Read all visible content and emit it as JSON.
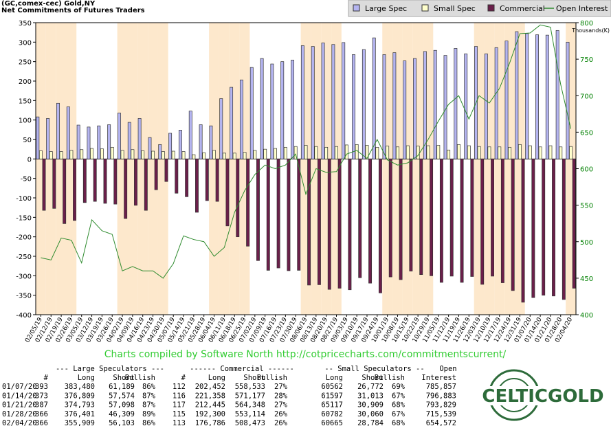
{
  "chart_data": {
    "type": "bar",
    "title": "(GC,comex-cec) Gold,NY",
    "subtitle": "Net Commitments of Futures Traders",
    "y2_label": "Thousands(K)",
    "credit": "Charts compiled by Software North  http://cotpricecharts.com/commitmentscurrent/",
    "categories": [
      "02/05/19",
      "02/12/19",
      "02/19/19",
      "02/26/19",
      "03/05/19",
      "03/12/19",
      "03/19/19",
      "03/26/19",
      "04/02/19",
      "04/09/19",
      "04/16/19",
      "04/23/19",
      "04/30/19",
      "05/07/19",
      "05/14/19",
      "05/21/19",
      "05/28/19",
      "06/04/19",
      "06/11/19",
      "06/18/19",
      "06/25/19",
      "07/02/19",
      "07/09/19",
      "07/16/19",
      "07/23/19",
      "07/30/19",
      "08/06/19",
      "08/13/19",
      "08/20/19",
      "08/27/19",
      "09/03/19",
      "09/10/19",
      "09/17/19",
      "09/24/19",
      "10/01/19",
      "10/08/19",
      "10/15/19",
      "10/22/19",
      "10/29/19",
      "11/05/19",
      "11/12/19",
      "11/19/19",
      "11/26/19",
      "12/03/19",
      "12/10/19",
      "12/17/19",
      "12/24/19",
      "12/31/19",
      "01/07/20",
      "01/14/20",
      "01/21/20",
      "01/28/20",
      "02/04/20"
    ],
    "series": [
      {
        "name": "Large Spec",
        "color": "#b4b4f0",
        "values": [
          108,
          104,
          143,
          134,
          87,
          82,
          85,
          88,
          118,
          94,
          104,
          55,
          37,
          66,
          74,
          123,
          88,
          85,
          155,
          184,
          203,
          235,
          258,
          244,
          250,
          254,
          291,
          289,
          298,
          294,
          299,
          268,
          281,
          311,
          268,
          273,
          252,
          258,
          276,
          279,
          266,
          284,
          270,
          289,
          270,
          286,
          303,
          327,
          322,
          319,
          318,
          330,
          300
        ]
      },
      {
        "name": "Small Spec",
        "color": "#ffffcc",
        "values": [
          21,
          19,
          19,
          22,
          24,
          27,
          26,
          30,
          22,
          24,
          21,
          20,
          19,
          20,
          19,
          11,
          16,
          22,
          15,
          15,
          17,
          22,
          25,
          27,
          30,
          32,
          35,
          32,
          30,
          32,
          36,
          37,
          35,
          30,
          33,
          31,
          34,
          33,
          34,
          35,
          23,
          37,
          34,
          32,
          31,
          31,
          30,
          37,
          34,
          31,
          34,
          31,
          32
        ]
      },
      {
        "name": "Commercial",
        "color": "#6b1f4a",
        "values": [
          -132,
          -127,
          -166,
          -158,
          -112,
          -109,
          -114,
          -116,
          -153,
          -119,
          -132,
          -79,
          -58,
          -88,
          -97,
          -137,
          -107,
          -109,
          -172,
          -200,
          -224,
          -261,
          -286,
          -280,
          -287,
          -286,
          -324,
          -323,
          -335,
          -332,
          -336,
          -305,
          -319,
          -344,
          -303,
          -310,
          -288,
          -297,
          -300,
          -317,
          -301,
          -317,
          -302,
          -322,
          -301,
          -318,
          -338,
          -368,
          -356,
          -350,
          -352,
          -361,
          -332
        ]
      },
      {
        "name": "Open Interest",
        "color": "#2e8b2e",
        "axis": "y2",
        "type": "line",
        "values": [
          478,
          475,
          505,
          502,
          471,
          530,
          515,
          510,
          460,
          466,
          460,
          460,
          450,
          470,
          508,
          503,
          500,
          480,
          492,
          540,
          570,
          592,
          605,
          600,
          605,
          620,
          565,
          600,
          595,
          596,
          620,
          625,
          614,
          640,
          612,
          605,
          608,
          618,
          640,
          665,
          688,
          700,
          668,
          700,
          690,
          710,
          745,
          785,
          785.857,
          796.883,
          793.829,
          715.539,
          654.572
        ]
      }
    ],
    "ylim": [
      -400,
      350
    ],
    "yticks": [
      350,
      300,
      250,
      200,
      150,
      100,
      50,
      0,
      -50,
      -100,
      -150,
      -200,
      -250,
      -300,
      -350,
      -400
    ],
    "y2lim": [
      400,
      800
    ],
    "y2ticks": [
      800,
      750,
      700,
      650,
      600,
      550,
      500,
      450,
      400
    ],
    "band_colors": [
      "#fde8cc",
      "#ffffff"
    ]
  },
  "table": {
    "header_groups": [
      "--- Large Speculators ---",
      "------ Commercial ------",
      "-- Small Speculators --",
      "Open"
    ],
    "columns": [
      "#",
      "Long",
      "Short",
      "Bullish",
      "#",
      "Long",
      "Short",
      "Bullish",
      "Long",
      "Short",
      "Bullish",
      "Interest"
    ],
    "rows": [
      [
        "01/07/20",
        "393",
        "383,480",
        "61,189",
        "86%",
        "112",
        "202,452",
        "558,533",
        "27%",
        "60562",
        "26,772",
        "69%",
        "785,857"
      ],
      [
        "01/14/20",
        "373",
        "376,809",
        "57,574",
        "87%",
        "116",
        "221,358",
        "571,177",
        "28%",
        "61597",
        "31,013",
        "67%",
        "796,883"
      ],
      [
        "01/21/20",
        "387",
        "374,793",
        "57,098",
        "87%",
        "117",
        "212,445",
        "564,348",
        "27%",
        "65117",
        "30,909",
        "68%",
        "793,829"
      ],
      [
        "01/28/20",
        "366",
        "376,401",
        "46,309",
        "89%",
        "115",
        "192,300",
        "553,114",
        "26%",
        "60782",
        "30,060",
        "67%",
        "715,539"
      ],
      [
        "02/04/20",
        "366",
        "355,909",
        "56,103",
        "86%",
        "113",
        "176,786",
        "508,473",
        "26%",
        "60665",
        "28,784",
        "68%",
        "654,572"
      ]
    ]
  },
  "logo": "CELTICGOLD"
}
